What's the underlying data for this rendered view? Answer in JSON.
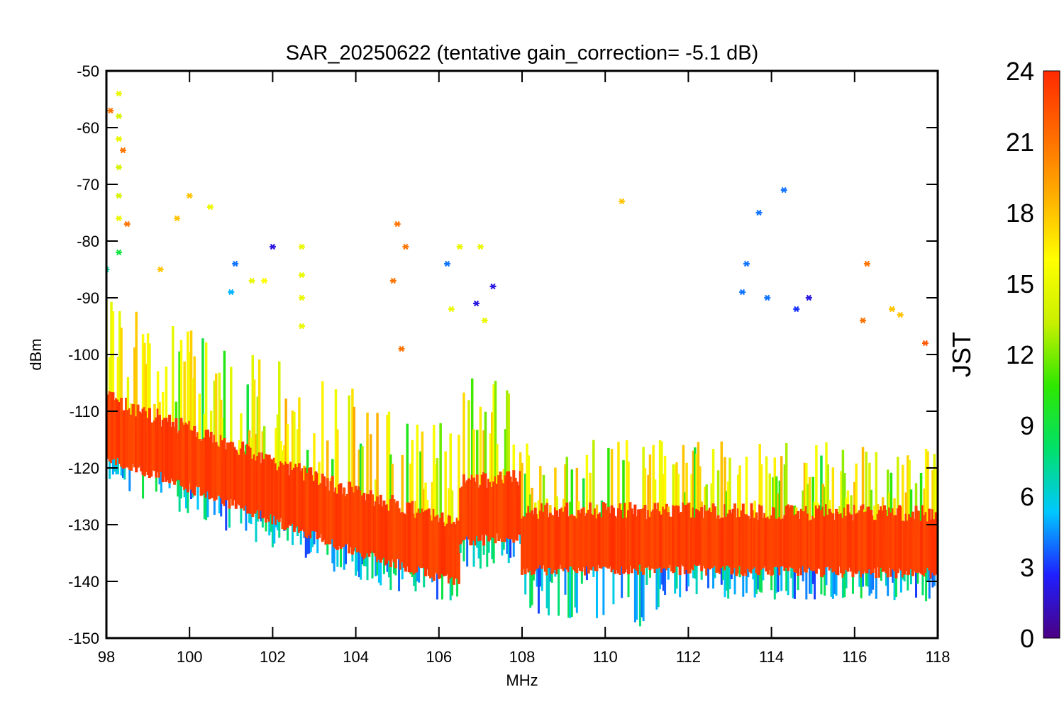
{
  "chart_data": {
    "type": "scatter",
    "title": "SAR_20250622 (tentative gain_correction= -5.1 dB)",
    "xlabel": "MHz",
    "ylabel": "dBm",
    "xlim": [
      98,
      118
    ],
    "ylim": [
      -150,
      -50
    ],
    "x_ticks": [
      98,
      100,
      102,
      104,
      106,
      108,
      110,
      112,
      114,
      116,
      118
    ],
    "y_ticks": [
      -50,
      -60,
      -70,
      -80,
      -90,
      -100,
      -110,
      -120,
      -130,
      -140,
      -150
    ],
    "grid": false,
    "marker": "asterisk",
    "color_by": "JST",
    "colorbar": {
      "label": "JST",
      "range": [
        0,
        24
      ],
      "ticks": [
        0,
        3,
        6,
        9,
        12,
        15,
        18,
        21,
        24
      ],
      "colormap": [
        "#4b0082",
        "#1f1fff",
        "#00c8ff",
        "#00e06a",
        "#2ee800",
        "#c8f000",
        "#ffff00",
        "#ffb000",
        "#ff6a00",
        "#ff2a00"
      ]
    },
    "series": [
      {
        "points": [
          [
            98.3,
            -54,
            15
          ],
          [
            98.3,
            -58,
            14
          ],
          [
            98.3,
            -62,
            15
          ],
          [
            98.3,
            -67,
            14
          ],
          [
            98.3,
            -72,
            14
          ],
          [
            98.3,
            -76,
            15
          ],
          [
            98.1,
            -57,
            21
          ],
          [
            98.4,
            -64,
            21
          ],
          [
            98.5,
            -77,
            21
          ],
          [
            98.0,
            -85,
            7
          ],
          [
            98.3,
            -82,
            9
          ],
          [
            99.3,
            -85,
            18
          ],
          [
            99.7,
            -76,
            18
          ],
          [
            100.0,
            -72,
            18
          ],
          [
            100.5,
            -74,
            15
          ],
          [
            101.1,
            -84,
            4
          ],
          [
            101.0,
            -89,
            5
          ],
          [
            101.5,
            -87,
            15
          ],
          [
            101.8,
            -87,
            16
          ],
          [
            102.0,
            -81,
            2
          ],
          [
            102.7,
            -81,
            15
          ],
          [
            102.7,
            -86,
            15
          ],
          [
            102.7,
            -90,
            15
          ],
          [
            102.7,
            -95,
            15
          ],
          [
            105.0,
            -77,
            21
          ],
          [
            105.2,
            -81,
            21
          ],
          [
            104.9,
            -87,
            21
          ],
          [
            105.1,
            -99,
            21
          ],
          [
            106.2,
            -84,
            4
          ],
          [
            106.3,
            -92,
            15
          ],
          [
            106.5,
            -81,
            15
          ],
          [
            107.0,
            -81,
            15
          ],
          [
            107.1,
            -94,
            15
          ],
          [
            106.9,
            -91,
            2
          ],
          [
            107.3,
            -88,
            2
          ],
          [
            110.4,
            -73,
            18
          ],
          [
            113.7,
            -75,
            4
          ],
          [
            114.3,
            -71,
            4
          ],
          [
            113.4,
            -84,
            4
          ],
          [
            113.3,
            -89,
            4
          ],
          [
            113.9,
            -90,
            4
          ],
          [
            114.6,
            -92,
            3
          ],
          [
            114.9,
            -90,
            2
          ],
          [
            116.3,
            -84,
            21
          ],
          [
            116.2,
            -94,
            21
          ],
          [
            116.9,
            -92,
            18
          ],
          [
            117.1,
            -93,
            18
          ],
          [
            117.7,
            -98,
            22
          ]
        ]
      }
    ]
  }
}
